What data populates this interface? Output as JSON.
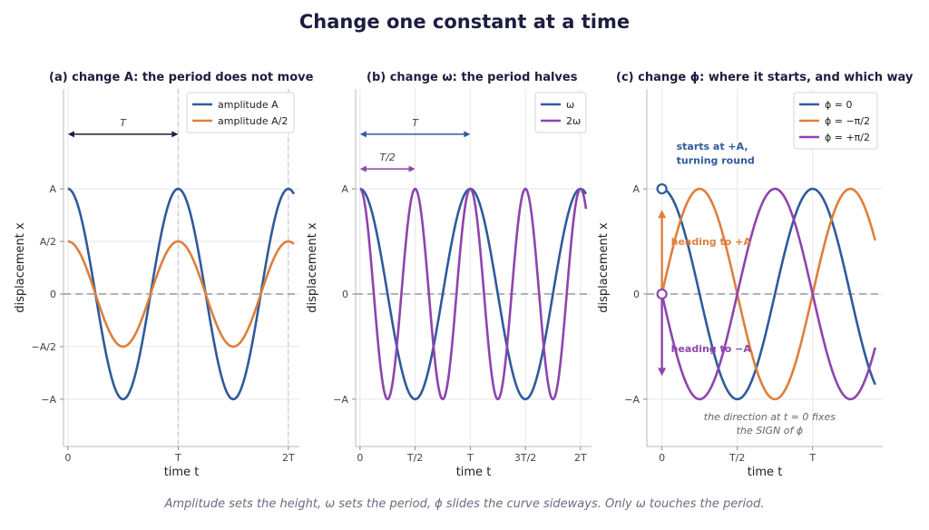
{
  "title": "Change one constant at a time",
  "caption": "Amplitude sets the height, ω sets the period, ϕ slides the curve sideways. Only ω touches the period.",
  "colors": {
    "blue": "#2f5b9a",
    "orange": "#de7f3b",
    "purple": "#8e44ad",
    "grid": "#e6e6ee",
    "baseline": "#8a90a8",
    "dark": "#1d1d3f"
  },
  "chart_data": [
    {
      "type": "line",
      "title": "(a)  change A:  the period does not move",
      "xlabel": "time t",
      "ylabel": "displacement x",
      "xlim": [
        -0.04,
        2.1
      ],
      "ylim": [
        -1.45,
        1.95
      ],
      "x_ticks": [
        {
          "v": 0,
          "label": "0"
        },
        {
          "v": 1,
          "label": "T"
        },
        {
          "v": 2,
          "label": "2T"
        }
      ],
      "y_ticks": [
        {
          "v": 1,
          "label": "A"
        },
        {
          "v": 0.5,
          "label": "A/2"
        },
        {
          "v": 0,
          "label": "0"
        },
        {
          "v": -0.5,
          "label": "−A/2"
        },
        {
          "v": -1,
          "label": "−A"
        }
      ],
      "vlines": [
        1,
        2
      ],
      "series": [
        {
          "name": "amplitude A",
          "color": "#2f5b9a",
          "amp": 1,
          "freq": 1,
          "phase": 0,
          "x_range": [
            0,
            2.05
          ]
        },
        {
          "name": "amplitude A/2",
          "color": "#de7f3b",
          "amp": 0.5,
          "freq": 1,
          "phase": 0,
          "x_range": [
            0,
            2.05
          ]
        }
      ],
      "arrows": [
        {
          "label": "T",
          "x0": 0,
          "x1": 1,
          "y": 1.52,
          "color": "#1d1d3f"
        }
      ],
      "legend": "top-right"
    },
    {
      "type": "line",
      "title": "(b)  change ω:  the period halves",
      "xlabel": "time t",
      "ylabel": "displacement x",
      "xlim": [
        -0.04,
        2.1
      ],
      "ylim": [
        -1.45,
        1.95
      ],
      "x_ticks": [
        {
          "v": 0,
          "label": "0"
        },
        {
          "v": 0.5,
          "label": "T/2"
        },
        {
          "v": 1,
          "label": "T"
        },
        {
          "v": 1.5,
          "label": "3T/2"
        },
        {
          "v": 2,
          "label": "2T"
        }
      ],
      "y_ticks": [
        {
          "v": 1,
          "label": "A"
        },
        {
          "v": 0,
          "label": "0"
        },
        {
          "v": -1,
          "label": "−A"
        }
      ],
      "vlines": [],
      "series": [
        {
          "name": "ω",
          "color": "#2f5b9a",
          "amp": 1,
          "freq": 1,
          "phase": 0,
          "x_range": [
            0,
            2.05
          ]
        },
        {
          "name": "2ω",
          "color": "#8e44ad",
          "amp": 1,
          "freq": 2,
          "phase": 0,
          "x_range": [
            0,
            2.05
          ]
        }
      ],
      "arrows": [
        {
          "label": "T",
          "x0": 0,
          "x1": 1,
          "y": 1.52,
          "color": "#2f5b9a"
        },
        {
          "label": "T/2",
          "x0": 0,
          "x1": 0.5,
          "y": 1.19,
          "color": "#8e44ad"
        }
      ],
      "legend": "top-right"
    },
    {
      "type": "line",
      "title": "(c)  change ϕ:  where it starts, and which way",
      "xlabel": "time t",
      "ylabel": "displacement x",
      "xlim": [
        -0.2,
        2.93
      ],
      "ylim": [
        -1.45,
        1.95
      ],
      "x_ticks": [
        {
          "v": 0,
          "label": "0"
        },
        {
          "v": 1,
          "label": "T/2"
        },
        {
          "v": 2,
          "label": "T"
        }
      ],
      "y_ticks": [
        {
          "v": 1,
          "label": "A"
        },
        {
          "v": 0,
          "label": "0"
        },
        {
          "v": -1,
          "label": "−A"
        }
      ],
      "vlines": [],
      "series": [
        {
          "name": "ϕ = 0",
          "color": "#2f5b9a",
          "amp": 1,
          "freq": 0.5,
          "phase": 0,
          "x_range": [
            0,
            2.83
          ]
        },
        {
          "name": "ϕ = −π/2",
          "color": "#de7f3b",
          "amp": 1,
          "freq": 0.5,
          "phase": -1.5708,
          "x_range": [
            0,
            2.83
          ]
        },
        {
          "name": "ϕ = +π/2",
          "color": "#8e44ad",
          "amp": 1,
          "freq": 0.5,
          "phase": 1.5708,
          "x_range": [
            0,
            2.83
          ]
        }
      ],
      "annotations": {
        "starts": "starts at +A,",
        "turning": "turning round",
        "heading_up": "heading to +A",
        "heading_down": "heading to −A",
        "note1": "the direction at t = 0 fixes",
        "note2": "the SIGN of ϕ"
      },
      "legend": "top-right"
    }
  ]
}
